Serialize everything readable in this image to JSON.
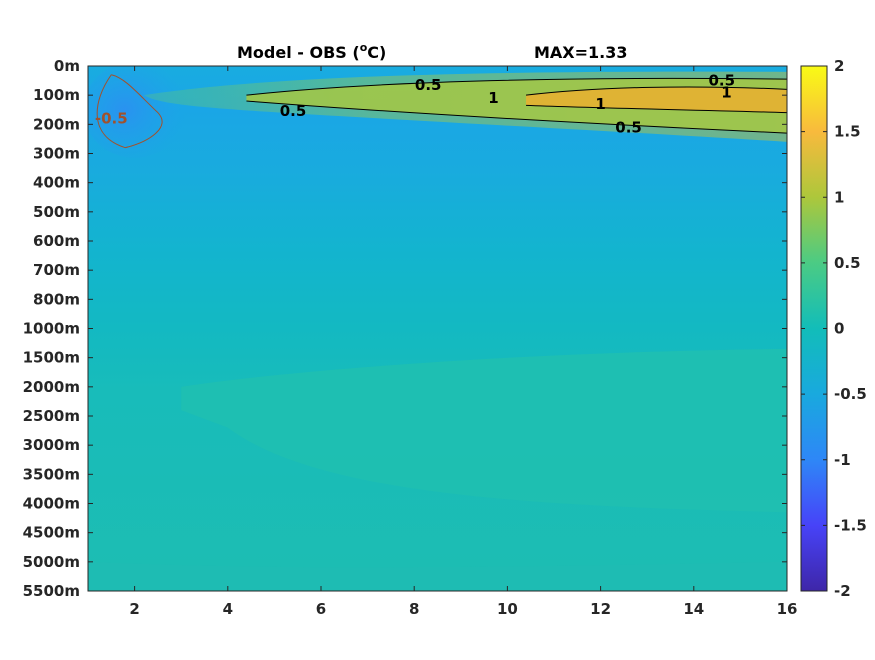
{
  "chart_data": {
    "type": "heatmap",
    "title": "Model - OBS (",
    "title_unit_super": "o",
    "title_unit_rest": "C)",
    "max_label": "MAX=1.33",
    "x_ticks": [
      "2",
      "4",
      "6",
      "8",
      "10",
      "12",
      "14",
      "16"
    ],
    "x_tick_values": [
      2,
      4,
      6,
      8,
      10,
      12,
      14,
      16
    ],
    "xlim": [
      1,
      16
    ],
    "y_ticks": [
      "0m",
      "100m",
      "200m",
      "300m",
      "400m",
      "500m",
      "600m",
      "700m",
      "800m",
      "1000m",
      "1500m",
      "2000m",
      "2500m",
      "3000m",
      "3500m",
      "4000m",
      "4500m",
      "5000m",
      "5500m"
    ],
    "colorbar": {
      "range": [
        -2,
        2
      ],
      "ticks": [
        "2",
        "1.5",
        "1",
        "0.5",
        "0",
        "-0.5",
        "-1",
        "-1.5",
        "-2"
      ],
      "tick_values": [
        2,
        1.5,
        1,
        0.5,
        0,
        -0.5,
        -1,
        -1.5,
        -2
      ],
      "colormap": "parula"
    },
    "contour_labels": [
      {
        "text": "0.5",
        "x": 8.3,
        "depth_index": 0.65,
        "color": "#000000"
      },
      {
        "text": "0.5",
        "x": 5.4,
        "depth_index": 1.55,
        "color": "#000000"
      },
      {
        "text": "1",
        "x": 9.7,
        "depth_index": 1.1,
        "color": "#000000"
      },
      {
        "text": "1",
        "x": 12.0,
        "depth_index": 1.3,
        "color": "#000000"
      },
      {
        "text": "0.5",
        "x": 12.6,
        "depth_index": 2.1,
        "color": "#000000"
      },
      {
        "text": "0.5",
        "x": 14.6,
        "depth_index": 0.5,
        "color": "#000000"
      },
      {
        "text": "1",
        "x": 14.7,
        "depth_index": 0.9,
        "color": "#000000"
      },
      {
        "text": "-0.5",
        "x": 1.5,
        "depth_index": 1.8,
        "color": "#a0522d"
      }
    ],
    "field_regions": [
      {
        "name": "background",
        "value": -0.1
      },
      {
        "name": "upper-water",
        "value": -0.35,
        "depth_from": 2,
        "depth_to": 9
      },
      {
        "name": "deep-water",
        "value": 0.1,
        "depth_from": 10,
        "depth_to": 18
      },
      {
        "name": "surface-warm-band",
        "value": 0.75,
        "x_from": 4.5,
        "x_to": 16,
        "depth_from": 0.3,
        "depth_to": 2.3
      },
      {
        "name": "surface-core",
        "value": 1.25,
        "x_from": 10.5,
        "x_to": 16,
        "depth_from": 0.8,
        "depth_to": 1.6
      },
      {
        "name": "cold-patch",
        "value": -0.6,
        "x_from": 1.1,
        "x_to": 2.9,
        "depth_from": 0.2,
        "depth_to": 2.8
      }
    ]
  }
}
